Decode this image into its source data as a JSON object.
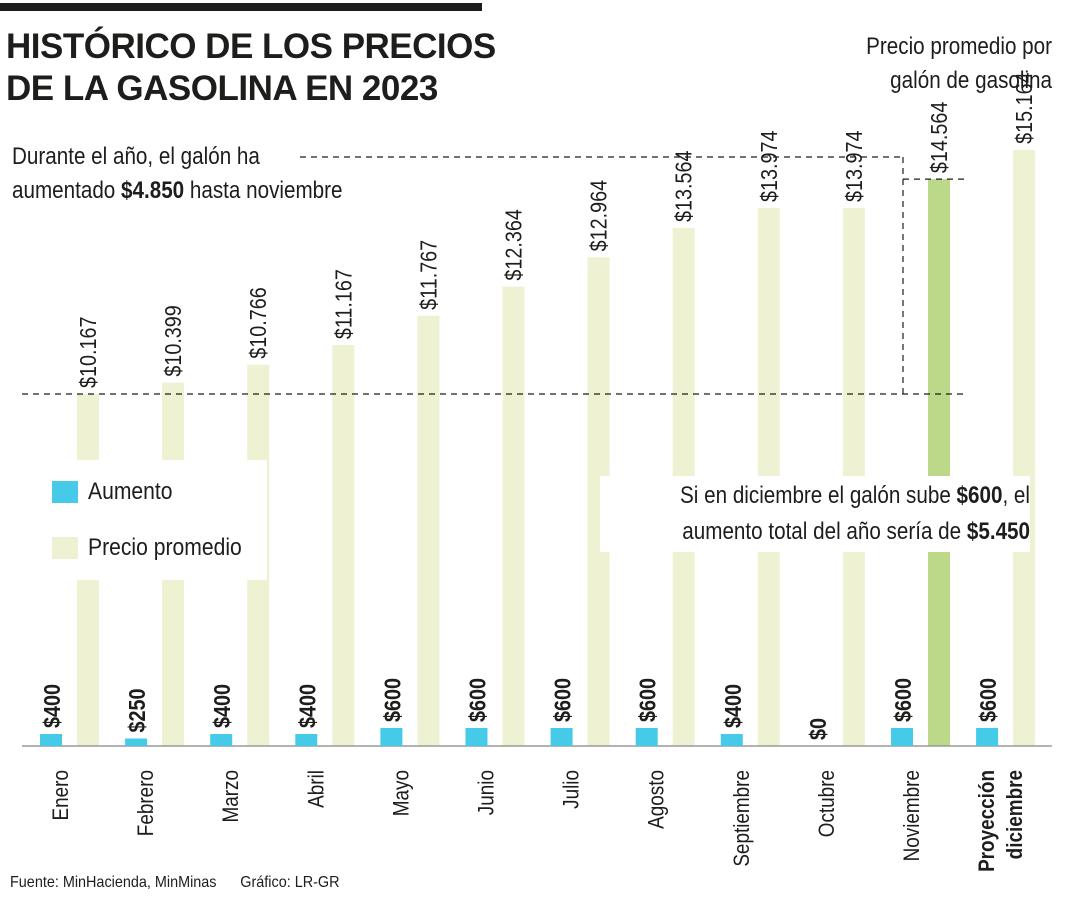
{
  "header": {
    "title_line1": "HISTÓRICO DE LOS PRECIOS",
    "title_line2": "DE LA GASOLINA EN 2023",
    "unit_line1": "Precio promedio por",
    "unit_line2": "galón de gasolina"
  },
  "annotations": {
    "top_line1": "Durante el año, el galón ha",
    "top_line2_pre": "aumentado ",
    "top_line2_bold": "$4.850",
    "top_line2_post": " hasta noviembre",
    "right_line1_pre": "Si en diciembre el galón sube ",
    "right_line1_bold": "$600",
    "right_line1_post": ", el",
    "right_line2_pre": "aumento total del año sería de ",
    "right_line2_bold": "$5.450"
  },
  "legend": {
    "increase": "Aumento",
    "price": "Precio promedio"
  },
  "footer": {
    "source": "Fuente: MinHacienda, MinMinas",
    "credit": "Gráfico: LR-GR"
  },
  "colors": {
    "increase": "#45cbe8",
    "price": "#eef1d2",
    "highlight": "#bcd98a",
    "text": "#1d1d1b"
  },
  "chart_data": {
    "type": "bar",
    "title": "HISTÓRICO DE LOS PRECIOS DE LA GASOLINA EN 2023",
    "categories": [
      "Enero",
      "Febrero",
      "Marzo",
      "Abril",
      "Mayo",
      "Junio",
      "Julio",
      "Agosto",
      "Septiembre",
      "Octubre",
      "Noviembre",
      "Proyección diciembre"
    ],
    "series": [
      {
        "name": "Aumento",
        "values": [
          400,
          250,
          400,
          400,
          600,
          600,
          600,
          600,
          400,
          0,
          600,
          600
        ],
        "labels": [
          "$400",
          "$250",
          "$400",
          "$400",
          "$600",
          "$600",
          "$600",
          "$600",
          "$400",
          "$0",
          "$600",
          "$600"
        ]
      },
      {
        "name": "Precio promedio",
        "values": [
          10167,
          10399,
          10766,
          11167,
          11767,
          12364,
          12964,
          13564,
          13974,
          13974,
          14564,
          15164
        ],
        "labels": [
          "$10.167",
          "$10.399",
          "$10.766",
          "$11.167",
          "$11.767",
          "$12.364",
          "$12.964",
          "$13.564",
          "$13.974",
          "$13.974",
          "$14.564",
          "$15.164"
        ]
      }
    ],
    "highlight_category": "Noviembre",
    "bold_category": "Proyección diciembre",
    "reference_values": [
      10167,
      15017
    ],
    "grid": false,
    "legend_position": "middle-left"
  }
}
